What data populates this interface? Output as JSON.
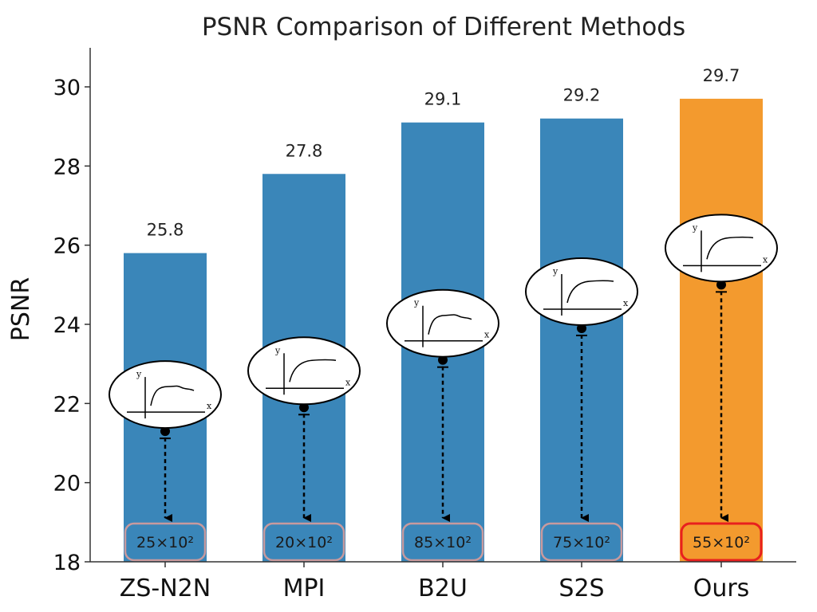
{
  "chart_data": {
    "type": "bar",
    "title": "PSNR Comparison of Different Methods",
    "xlabel": "",
    "ylabel": "PSNR",
    "ylim": [
      18,
      31
    ],
    "yticks": [
      18,
      20,
      22,
      24,
      26,
      28,
      30
    ],
    "categories": [
      "ZS-N2N",
      "MPI",
      "B2U",
      "S2S",
      "Ours"
    ],
    "values": [
      25.8,
      27.8,
      29.1,
      29.2,
      29.7
    ],
    "value_labels": [
      "25.8",
      "27.8",
      "29.1",
      "29.2",
      "29.7"
    ],
    "bar_colors": [
      "#3a86b9",
      "#3a86b9",
      "#3a86b9",
      "#3a86b9",
      "#f39a2e"
    ],
    "highlight_index": 4,
    "badges": [
      "25×10²",
      "20×10²",
      "85×10²",
      "75×10²",
      "55×10²"
    ],
    "badge_border_color": "#c89a9e",
    "highlight_badge_border_color": "#e8201e",
    "inset_axis_labels": {
      "x": "x",
      "y": "y"
    },
    "marker_levels": [
      21.3,
      21.9,
      23.1,
      23.9,
      25.0
    ],
    "curve_styles": [
      "noisy",
      "smooth",
      "noisy",
      "smooth",
      "smooth"
    ],
    "grid": false
  }
}
